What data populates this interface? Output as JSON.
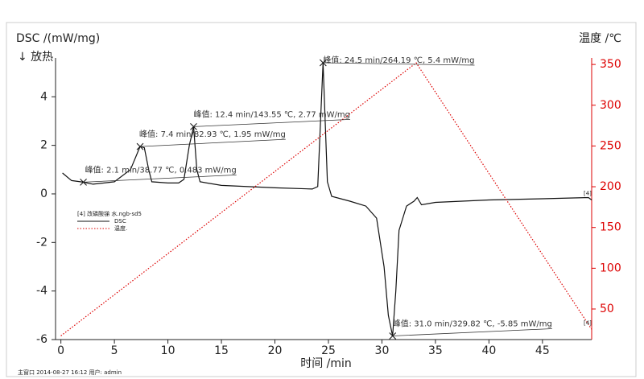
{
  "chart_data": {
    "type": "line",
    "y_label": "DSC /(mW/mg)",
    "y_sublabel": "↓ 放热",
    "y2_label": "温度 /℃",
    "x_label": "时间 /min",
    "legend_title": "[4] 改磷酸锑 水.ngb-sd5",
    "footer": "主窗口 2014-08-27 16:12 用户: admin",
    "xlim": [
      -0.5,
      49.6
    ],
    "ylim": [
      -6,
      5.6
    ],
    "y2lim": [
      12.5,
      358
    ],
    "xticks": [
      0,
      5,
      10,
      15,
      20,
      25,
      30,
      35,
      40,
      45
    ],
    "yticks": [
      -6,
      -4,
      -2,
      0,
      2,
      4
    ],
    "y2ticks": [
      50,
      100,
      150,
      200,
      250,
      300,
      350
    ],
    "series": [
      {
        "name": "DSC",
        "color": "#111111",
        "end_label": "[4]",
        "x": [
          0.15,
          1,
          2.1,
          3,
          5,
          6.5,
          7.4,
          7.8,
          8.2,
          8.5,
          10,
          11,
          11.5,
          12,
          12.4,
          12.7,
          13,
          15,
          20,
          23.5,
          24,
          24.5,
          24.9,
          25.3,
          27,
          28.5,
          29.5,
          30.2,
          30.6,
          31.0,
          31.3,
          31.6,
          32.3,
          33,
          33.3,
          33.7,
          35,
          40,
          45,
          49.3,
          49.6
        ],
        "values": [
          0.86,
          0.55,
          0.483,
          0.4,
          0.5,
          1.0,
          1.95,
          1.9,
          1.0,
          0.5,
          0.45,
          0.45,
          0.6,
          2.0,
          2.77,
          1.0,
          0.5,
          0.35,
          0.25,
          0.2,
          0.3,
          5.4,
          0.5,
          -0.1,
          -0.3,
          -0.5,
          -1.0,
          -3,
          -5,
          -5.85,
          -4,
          -1.5,
          -0.5,
          -0.3,
          -0.15,
          -0.45,
          -0.35,
          -0.25,
          -0.2,
          -0.15,
          -0.25
        ]
      },
      {
        "name": "温度.",
        "color": "#dd0000",
        "axis": "y2",
        "dashed": true,
        "end_label": "[4]",
        "x": [
          0,
          33.2,
          49.6
        ],
        "values": [
          17,
          352,
          25
        ]
      }
    ],
    "annotations": [
      {
        "text": "峰值: 2.1 min/38.77 ℃, 0.483 mW/mg",
        "x": 2.1,
        "y": 0.483
      },
      {
        "text": "峰值: 7.4 min/82.93 ℃, 1.95 mW/mg",
        "x": 7.4,
        "y": 1.95
      },
      {
        "text": "峰值: 12.4 min/143.55 ℃, 2.77 mW/mg",
        "x": 12.4,
        "y": 2.77
      },
      {
        "text": "峰值: 24.5 min/264.19 ℃, 5.4 mW/mg",
        "x": 24.5,
        "y": 5.4
      },
      {
        "text": "峰值: 31.0 min/329.82 ℃, -5.85 mW/mg",
        "x": 31.0,
        "y": -5.85
      }
    ]
  }
}
